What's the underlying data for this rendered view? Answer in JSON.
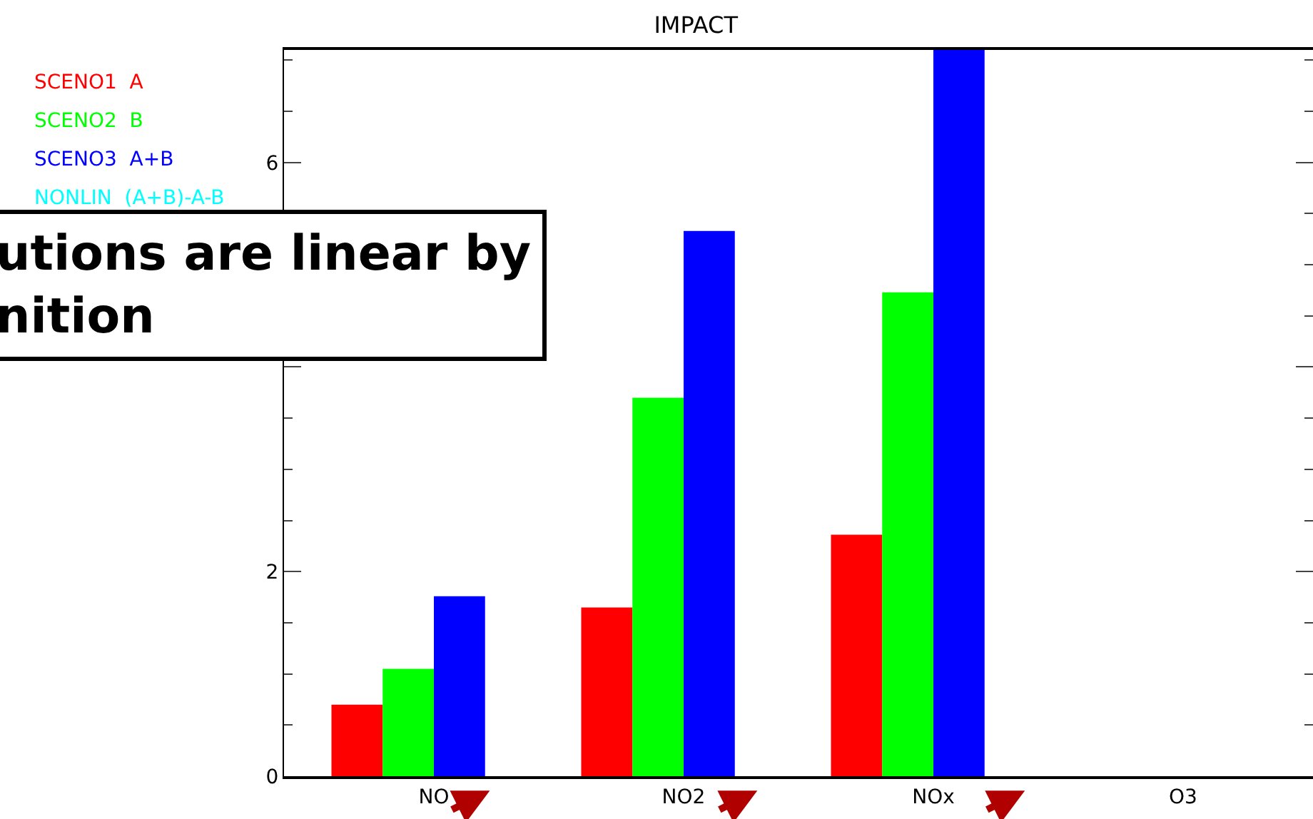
{
  "chart_data": {
    "type": "bar",
    "title": "IMPACT",
    "categories": [
      "NO",
      "NO2",
      "NOx",
      "O3"
    ],
    "series": [
      {
        "name": "SCENO1  A",
        "color": "#ff0000",
        "values": [
          0.7,
          1.65,
          2.36,
          null
        ]
      },
      {
        "name": "SCENO2  B",
        "color": "#00ff00",
        "values": [
          1.05,
          3.7,
          4.73,
          null
        ]
      },
      {
        "name": "SCENO3  A+B",
        "color": "#0000ff",
        "values": [
          1.76,
          5.33,
          7.1,
          null
        ]
      },
      {
        "name": "NONLIN  (A+B)-A-B",
        "color": "#00ffff",
        "values": [
          0,
          0,
          0,
          null
        ]
      }
    ],
    "ylim": [
      0,
      7.1
    ],
    "yticks": [
      0,
      2,
      {
        "value": 4,
        "label": null
      },
      6
    ],
    "legend": "top left",
    "annotations": [
      "utions are linear by\nnition"
    ]
  }
}
